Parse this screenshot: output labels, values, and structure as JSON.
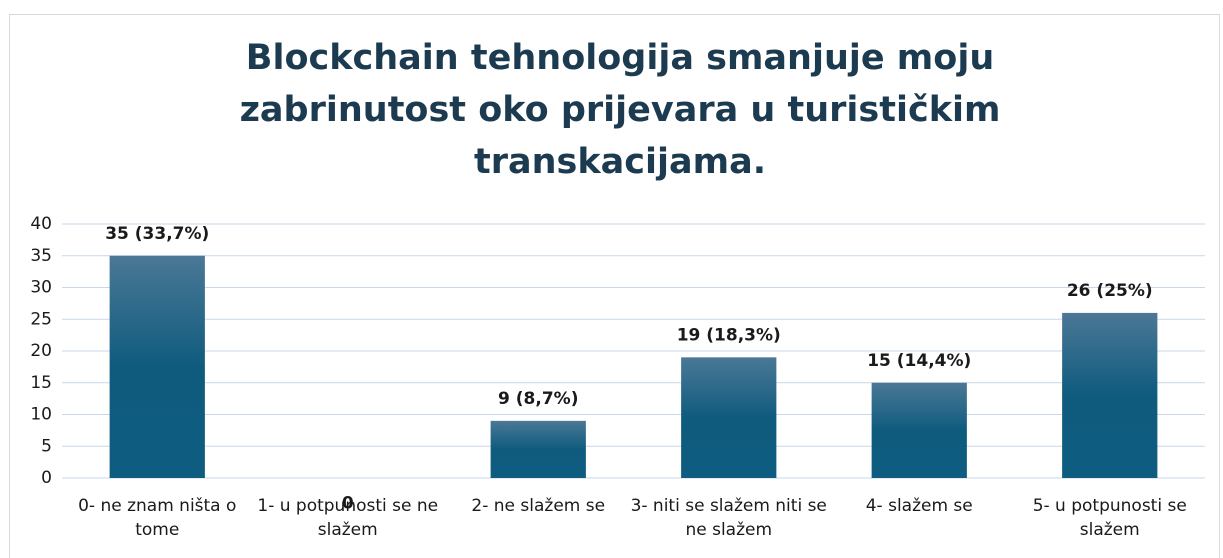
{
  "chart_data": {
    "type": "bar",
    "title": "Blockchain tehnologija smanjuje moju zabrinutost oko prijevara u turističkim transkacijama.",
    "categories": [
      "0- ne znam ništa o tome",
      "1- u potpunosti se ne slažem",
      "2- ne slažem se",
      "3- niti se slažem niti se ne slažem",
      "4- slažem se",
      "5- u potpunosti se slažem"
    ],
    "values": [
      35,
      0,
      9,
      19,
      15,
      26
    ],
    "value_labels": [
      "35 (33,7%)",
      "0",
      "9 (8,7%)",
      "19 (18,3%)",
      "15 (14,4%)",
      "26 (25%)"
    ],
    "color": "#0e5c80",
    "ylim": [
      0,
      40
    ],
    "yticks": [
      0,
      5,
      10,
      15,
      20,
      25,
      30,
      35,
      40
    ],
    "grid": true
  }
}
